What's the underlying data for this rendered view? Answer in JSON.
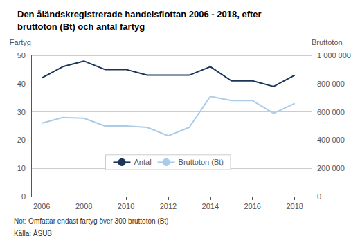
{
  "chart_data": {
    "type": "line",
    "title": "Den åländskregistrerade handelsflottan 2006 - 2018, efter\nbruttoton (Bt) och antal fartyg",
    "x": [
      2006,
      2007,
      2008,
      2009,
      2010,
      2011,
      2012,
      2013,
      2014,
      2015,
      2016,
      2017,
      2018
    ],
    "xlim": [
      2005.5,
      2018.8
    ],
    "xticks": [
      2006,
      2008,
      2010,
      2012,
      2014,
      2016,
      2018
    ],
    "ylabel": "Fartyg",
    "ylim": [
      0,
      50
    ],
    "yticks": [
      0,
      10,
      20,
      30,
      40,
      50
    ],
    "y2label": "Bruttoton",
    "y2lim": [
      0,
      1000000
    ],
    "y2ticks": [
      0,
      {
        "value": 200000,
        "label": "200 000"
      },
      {
        "value": 400000,
        "label": "400 000"
      },
      {
        "value": 600000,
        "label": "600 000"
      },
      {
        "value": 800000,
        "label": "800 000"
      },
      {
        "value": 1000000,
        "label": "1 000 000"
      }
    ],
    "series": [
      {
        "name": "Antal",
        "color": "#1a3558",
        "values": [
          42,
          46,
          48,
          45,
          45,
          43,
          43,
          43,
          46,
          41,
          41,
          39,
          43
        ]
      },
      {
        "name": "Bruttoton (Bt)",
        "color": "#aacce8",
        "axis": "y2",
        "values": [
          520000,
          560000,
          555000,
          500000,
          500000,
          490000,
          430000,
          490000,
          710000,
          680000,
          680000,
          590000,
          660000
        ]
      }
    ],
    "grid": true,
    "legend": "bottom",
    "annotations": [
      "Not: Omfattar endast fartyg över 300 bruttoton (Bt)",
      "Källa: ÅSUB"
    ]
  }
}
